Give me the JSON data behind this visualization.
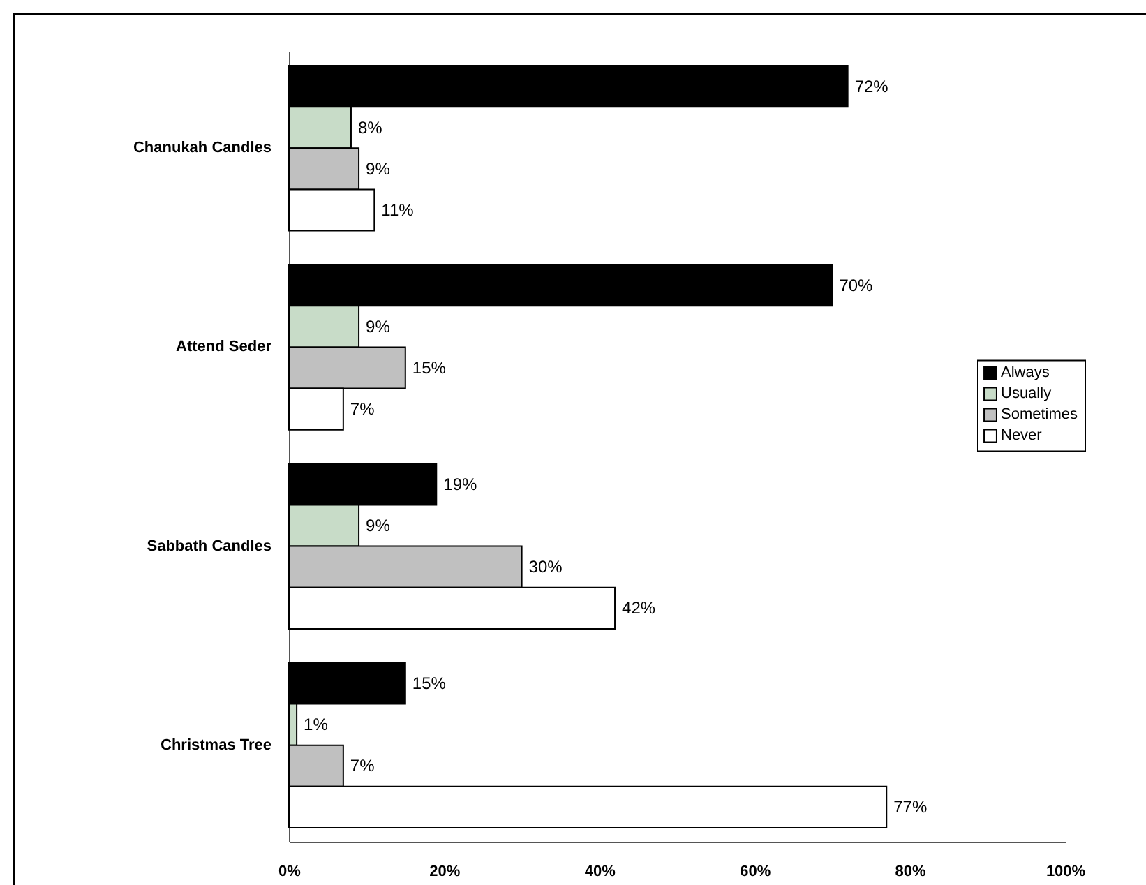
{
  "chart_data": {
    "type": "bar",
    "orientation": "horizontal",
    "categories": [
      "Chanukah Candles",
      "Attend Seder",
      "Sabbath Candles",
      "Christmas Tree"
    ],
    "series": [
      {
        "name": "Always",
        "color": "#000000",
        "values": [
          72,
          70,
          19,
          15
        ],
        "value_labels": [
          "72%",
          "70%",
          "19%",
          "15%"
        ]
      },
      {
        "name": "Usually",
        "color": "#c8dcc8",
        "values": [
          8,
          9,
          9,
          1
        ],
        "value_labels": [
          "8%",
          "9%",
          "9%",
          "1%"
        ]
      },
      {
        "name": "Sometimes",
        "color": "#c0c0c0",
        "values": [
          9,
          15,
          30,
          7
        ],
        "value_labels": [
          "9%",
          "15%",
          "30%",
          "7%"
        ]
      },
      {
        "name": "Never",
        "color": "#ffffff",
        "values": [
          11,
          7,
          42,
          77
        ],
        "value_labels": [
          "11%",
          "7%",
          "42%",
          "77%"
        ]
      }
    ],
    "xlim": [
      0,
      100
    ],
    "xticks": [
      {
        "value": 0,
        "label": "0%"
      },
      {
        "value": 20,
        "label": "20%"
      },
      {
        "value": 40,
        "label": "40%"
      },
      {
        "value": 60,
        "label": "60%"
      },
      {
        "value": 80,
        "label": "80%"
      },
      {
        "value": 100,
        "label": "100%"
      }
    ],
    "legend": "right"
  }
}
